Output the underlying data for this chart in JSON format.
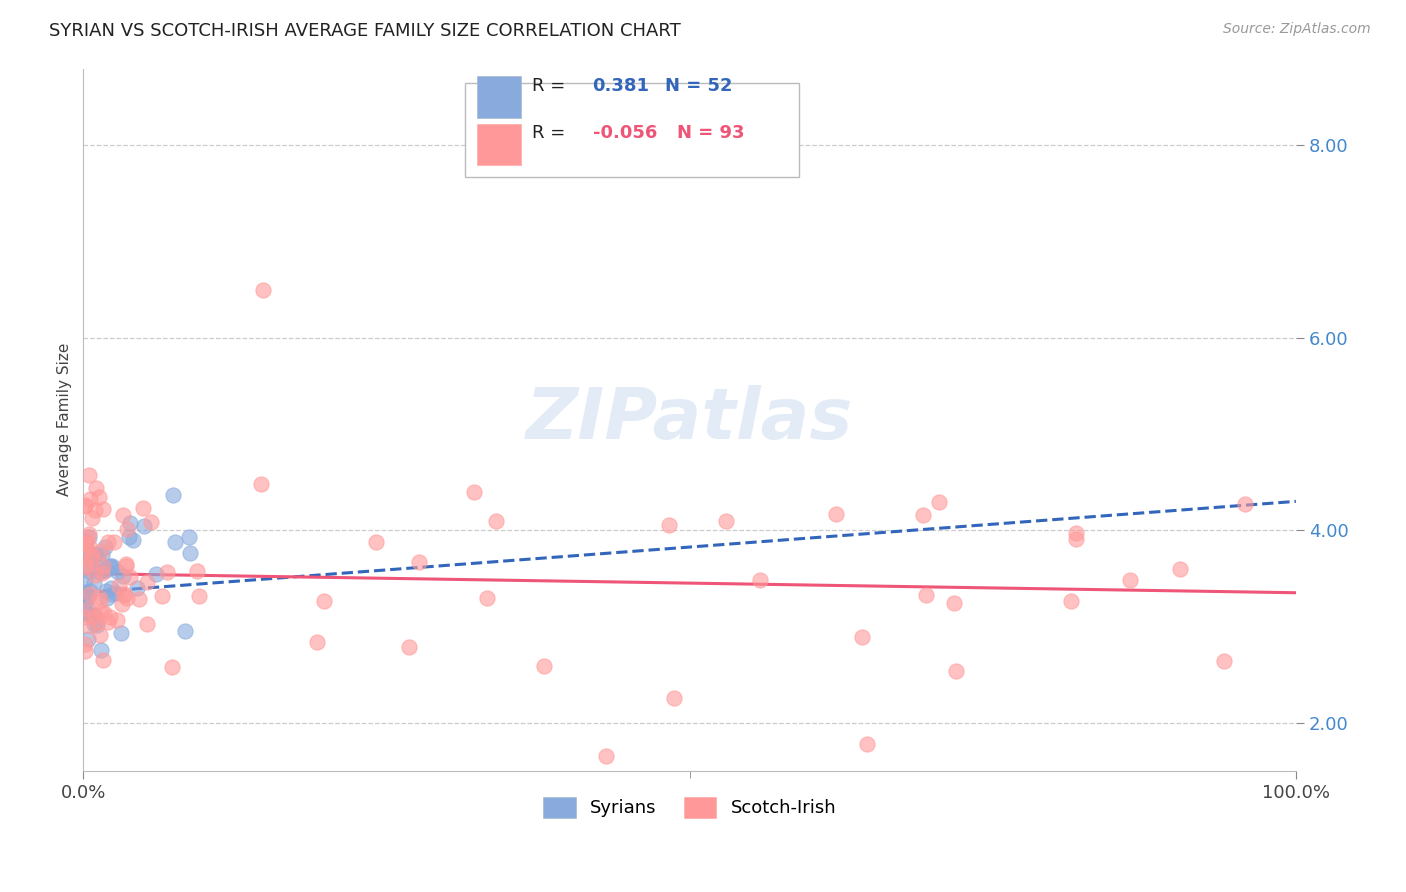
{
  "title": "SYRIAN VS SCOTCH-IRISH AVERAGE FAMILY SIZE CORRELATION CHART",
  "source": "Source: ZipAtlas.com",
  "ylabel": "Average Family Size",
  "xlim": [
    0.0,
    1.0
  ],
  "ylim": [
    1.5,
    8.8
  ],
  "yticks": [
    2.0,
    4.0,
    6.0,
    8.0
  ],
  "ytick_labels": [
    "2.00",
    "4.00",
    "6.00",
    "8.00"
  ],
  "xtick_labels": [
    "0.0%",
    "100.0%"
  ],
  "syrian_color": "#88AADD",
  "scotch_color": "#FF9999",
  "syrian_line_color": "#3366BB",
  "scotch_line_color": "#EE5577",
  "background_color": "#FFFFFF",
  "grid_color": "#CCCCCC",
  "title_fontsize": 13,
  "axis_label_fontsize": 11,
  "tick_label_fontsize": 13,
  "watermark_text": "ZIPatlas",
  "legend_R_syrian": "0.381",
  "legend_N_syrian": "52",
  "legend_R_scotch": "-0.056",
  "legend_N_scotch": "93",
  "syrian_seed": 42,
  "scotch_seed": 99
}
